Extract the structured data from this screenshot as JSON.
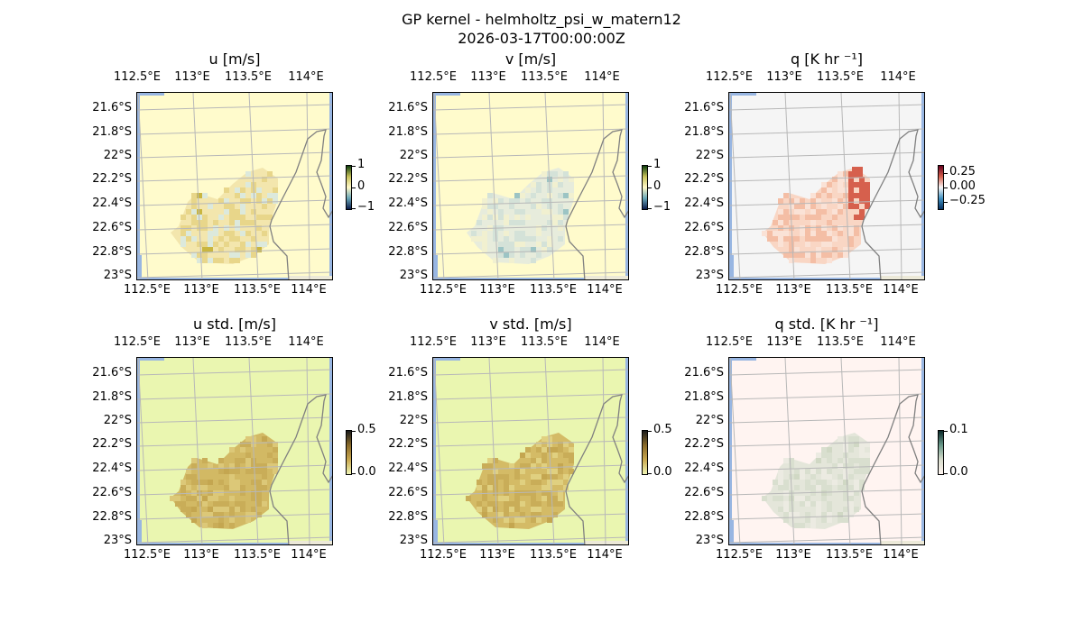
{
  "figure": {
    "title_line1": "GP kernel - helmholtz_psi_w_matern12",
    "title_line2": "2026-03-17T00:00:00Z"
  },
  "axes_labels": {
    "lon_ticks": [
      "112.5°E",
      "113°E",
      "113.5°E",
      "114°E"
    ],
    "lat_ticks": [
      "21.6°S",
      "21.8°S",
      "22°S",
      "22.2°S",
      "22.4°S",
      "22.6°S",
      "22.8°S",
      "23°S"
    ]
  },
  "colors": {
    "ocean": "#98b6e2",
    "coast": "#808080",
    "grid": "#b8b8b8"
  },
  "panels": [
    {
      "title": "u [m/s]",
      "bg": "#fffbcc",
      "blob": "#f3e6ad",
      "cell_a": "#e8d68a",
      "cell_b": "#dce9dc",
      "hot": "#c9b640",
      "cbar_ticks": [
        "1",
        "0",
        "−1"
      ],
      "cbar_gradient": [
        "#0d3d0d",
        "#c7c25a",
        "#fff8c8",
        "#6aa7b8",
        "#0a1a4a"
      ]
    },
    {
      "title": "v [m/s]",
      "bg": "#fffbcc",
      "blob": "#e7ecdc",
      "cell_a": "#d4e2d8",
      "cell_b": "#f1f0d0",
      "hot": "#9cc4c4",
      "cbar_ticks": [
        "1",
        "0",
        "−1"
      ],
      "cbar_gradient": [
        "#0d3d0d",
        "#c7c25a",
        "#fff8c8",
        "#6aa7b8",
        "#0a1a4a"
      ]
    },
    {
      "title": "q [K hr ⁻¹]",
      "bg": "#f5f5f5",
      "blob": "#f9d6c4",
      "cell_a": "#f4bea5",
      "cell_b": "#fae2d6",
      "hot": "#d6604d",
      "cbar_ticks": [
        "0.25",
        "0.00",
        "−0.25"
      ],
      "cbar_gradient": [
        "#67001f",
        "#d6604d",
        "#f7f7f7",
        "#4393c3",
        "#053061"
      ]
    },
    {
      "title": "u std. [m/s]",
      "bg": "#eaf6b0",
      "blob": "#d2b964",
      "cell_a": "#c9ad58",
      "cell_b": "#dcc878",
      "hot": "#c4a650",
      "cbar_ticks": [
        "0.5",
        "0.0"
      ],
      "cbar_gradient": [
        "#1a1a1a",
        "#8a6a2a",
        "#c9a850",
        "#f0f5b5"
      ]
    },
    {
      "title": "v std. [m/s]",
      "bg": "#eaf6b0",
      "blob": "#d4bb66",
      "cell_a": "#c9ad58",
      "cell_b": "#e0d080",
      "hot": "#c4a650",
      "cbar_ticks": [
        "0.5",
        "0.0"
      ],
      "cbar_gradient": [
        "#1a1a1a",
        "#8a6a2a",
        "#c9a850",
        "#f0f5b5"
      ]
    },
    {
      "title": "q std. [K hr ⁻¹]",
      "bg": "#fff4f1",
      "blob": "#e4e6da",
      "cell_a": "#d9dfcf",
      "cell_b": "#ecebe2",
      "hot": "#d0d8c4",
      "cbar_ticks": [
        "0.1",
        "0.0"
      ],
      "cbar_gradient": [
        "#0a2a2a",
        "#6a9a8a",
        "#d8dccc",
        "#fff4f0"
      ]
    }
  ]
}
